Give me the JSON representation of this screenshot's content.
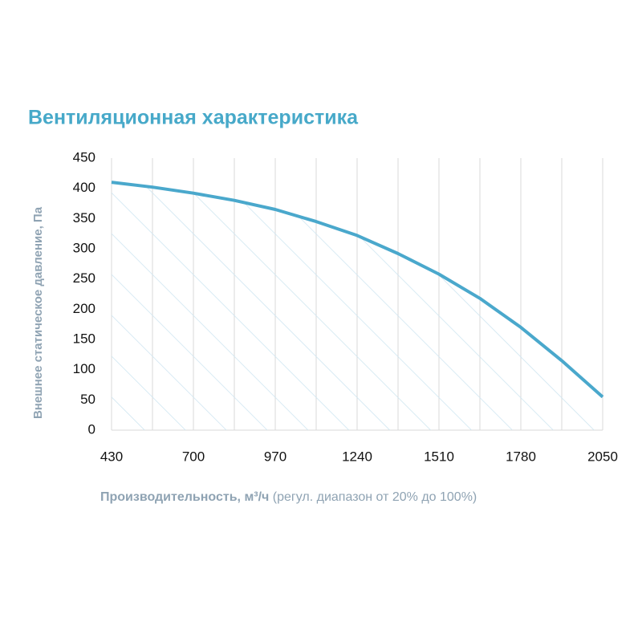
{
  "chart_data": {
    "type": "line",
    "title": "Вентиляционная характеристика",
    "x_label": "Производительность, м³/ч",
    "x_label_note": "(регул. диапазон от 20% до 100%)",
    "y_label": "Внешнее статическое давление, Па",
    "x": [
      430,
      565,
      700,
      835,
      970,
      1105,
      1240,
      1375,
      1510,
      1645,
      1780,
      1915,
      2050
    ],
    "series": [
      {
        "color": "#4aa8cc",
        "values": [
          410,
          402,
          392,
          380,
          365,
          345,
          322,
          292,
          258,
          218,
          170,
          115,
          55
        ]
      }
    ],
    "xlim": [
      430,
      2050
    ],
    "xticks": [
      430,
      700,
      970,
      1240,
      1510,
      1780,
      2050
    ],
    "x_minor_ticks": [
      565,
      835,
      1105,
      1375,
      1645,
      1915
    ],
    "ylim": [
      0,
      450
    ],
    "yticks": [
      0,
      50,
      100,
      150,
      200,
      250,
      300,
      350,
      400,
      450
    ],
    "grid": "x",
    "hatch_color": "#cfe6f1"
  }
}
